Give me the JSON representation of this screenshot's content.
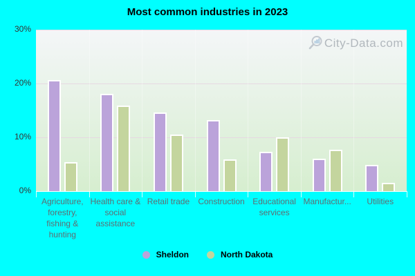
{
  "title": "Most common industries in 2023",
  "watermark": {
    "text": "City-Data.com",
    "icon": "magnifier-with-bars-icon"
  },
  "colors": {
    "background": "#00ffff",
    "plot_gradient_top": "#f4f6f8",
    "plot_gradient_bottom": "#d6eecf",
    "gridline": "#e6d9e2",
    "bar_border": "#ffffff",
    "title_text": "#000000",
    "ytick_text": "#333333",
    "xtick_text": "#5f6d72",
    "watermark_text": "#a2a9b0",
    "sheldon": "#bba3da",
    "north_dakota": "#c4d59e"
  },
  "chart_data": {
    "type": "bar",
    "title": "Most common industries in 2023",
    "categories": [
      "Agriculture, forestry, fishing & hunting",
      "Health care & social assistance",
      "Retail trade",
      "Construction",
      "Educational services",
      "Manufactur...",
      "Utilities"
    ],
    "series": [
      {
        "name": "Sheldon",
        "color": "#bba3da",
        "values": [
          20.6,
          18.1,
          14.6,
          13.2,
          7.3,
          6.0,
          4.9
        ]
      },
      {
        "name": "North Dakota",
        "color": "#c4d59e",
        "values": [
          5.4,
          15.9,
          10.5,
          5.9,
          10.0,
          7.7,
          1.5
        ]
      }
    ],
    "xlabel": "",
    "ylabel": "",
    "ylim": [
      0,
      30
    ],
    "yticks": [
      {
        "label": "0%",
        "value": 0
      },
      {
        "label": "10%",
        "value": 10
      },
      {
        "label": "20%",
        "value": 20
      },
      {
        "label": "30%",
        "value": 30
      }
    ],
    "grid": true,
    "legend_position": "bottom"
  }
}
